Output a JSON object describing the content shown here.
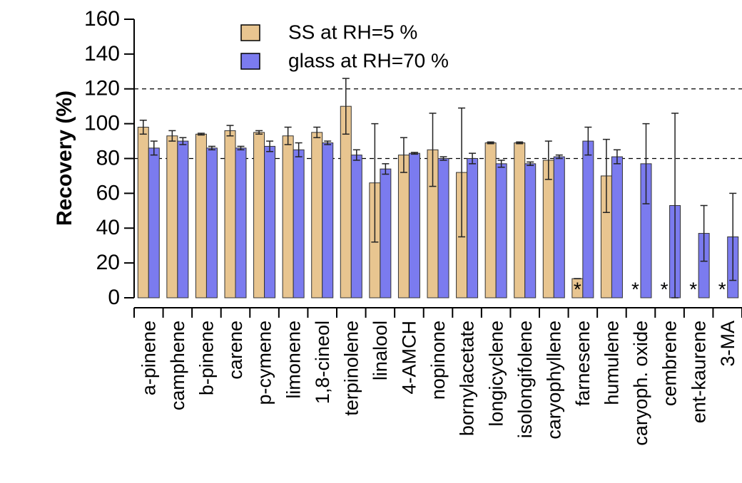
{
  "chart_data": {
    "type": "bar",
    "y_label": "Recovery (%)",
    "categories": [
      "a-pinene",
      "camphene",
      "b-pinene",
      "carene",
      "p-cymene",
      "limonene",
      "1,8-cineol",
      "terpinolene",
      "linalool",
      "4-AMCH",
      "nopinone",
      "bornylacetate",
      "longicyclene",
      "isolongifolene",
      "caryophyllene",
      "farnesene",
      "humulene",
      "caryoph. oxide",
      "cembrene",
      "ent-kaurene",
      "3-MA"
    ],
    "series": [
      {
        "name": "SS at RH=5 %",
        "color": "#e8c590",
        "values": [
          98,
          93,
          94,
          96,
          95,
          93,
          95,
          110,
          66,
          82,
          85,
          72,
          89,
          89,
          79,
          11,
          70,
          null,
          null,
          null,
          null
        ],
        "errors": [
          4,
          3,
          0.5,
          3,
          1,
          5,
          3,
          16,
          34,
          10,
          21,
          37,
          0.5,
          0.5,
          11,
          0,
          21,
          null,
          null,
          null,
          null
        ]
      },
      {
        "name": "glass at RH=70 %",
        "color": "#7b7bef",
        "values": [
          86,
          90,
          86,
          86,
          87,
          85,
          89,
          82,
          74,
          83,
          80,
          80,
          77,
          77,
          81,
          90,
          81,
          77,
          53,
          37,
          35
        ],
        "errors": [
          4,
          2,
          1,
          1,
          3,
          4,
          1,
          3,
          3,
          0.5,
          1,
          3,
          2,
          1,
          1,
          8,
          4,
          23,
          53,
          16,
          25
        ]
      }
    ],
    "annotations": [
      {
        "text": "*",
        "category": "farnesene"
      },
      {
        "text": "*",
        "category": "caryoph. oxide"
      },
      {
        "text": "*",
        "category": "cembrene"
      },
      {
        "text": "*",
        "category": "ent-kaurene"
      },
      {
        "text": "*",
        "category": "3-MA"
      }
    ],
    "hlines": [
      120,
      80
    ],
    "ylim": [
      0,
      160
    ],
    "yticks": [
      0,
      20,
      40,
      60,
      80,
      100,
      120,
      140,
      160
    ],
    "legend": "top"
  }
}
